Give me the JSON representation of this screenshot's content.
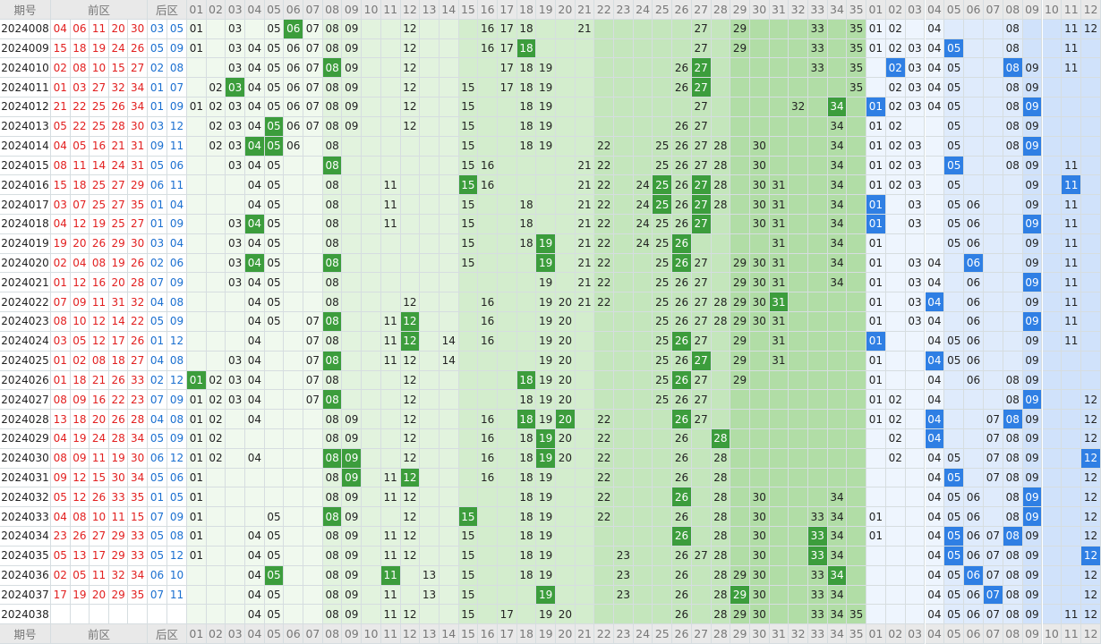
{
  "header": {
    "issue": "期号",
    "front": "前区",
    "back": "后区",
    "zone1": [
      "01",
      "02",
      "03",
      "04",
      "05",
      "06",
      "07",
      "08",
      "09",
      "10",
      "11",
      "12",
      "13",
      "14",
      "15",
      "16",
      "17",
      "18",
      "19",
      "20",
      "21",
      "22",
      "23",
      "24",
      "25",
      "26",
      "27",
      "28",
      "29",
      "30",
      "31",
      "32",
      "33",
      "34",
      "35"
    ],
    "zone2": [
      "01",
      "02",
      "03",
      "04",
      "05",
      "06",
      "07",
      "08",
      "09",
      "10",
      "11",
      "12"
    ]
  },
  "rows": [
    {
      "issue": "2024008",
      "front": [
        "04",
        "06",
        "11",
        "20",
        "30"
      ],
      "back": [
        "03",
        "05"
      ],
      "zone1": [
        "01",
        "03",
        "05",
        "06",
        "07",
        "08",
        "09",
        "12",
        "16",
        "17",
        "18",
        "21",
        "27",
        "29",
        "33",
        "35"
      ],
      "hl1": [
        "06"
      ],
      "zone2": [
        "01",
        "02",
        "04",
        "08",
        "11",
        "12"
      ],
      "hl2": []
    },
    {
      "issue": "2024009",
      "front": [
        "15",
        "18",
        "19",
        "24",
        "26"
      ],
      "back": [
        "05",
        "09"
      ],
      "zone1": [
        "01",
        "03",
        "04",
        "05",
        "06",
        "07",
        "08",
        "09",
        "12",
        "16",
        "17",
        "18",
        "27",
        "29",
        "33",
        "35"
      ],
      "hl1": [
        "18"
      ],
      "zone2": [
        "01",
        "02",
        "03",
        "04",
        "05",
        "08",
        "11"
      ],
      "hl2": [
        "05"
      ]
    },
    {
      "issue": "2024010",
      "front": [
        "02",
        "08",
        "10",
        "15",
        "27"
      ],
      "back": [
        "02",
        "08"
      ],
      "zone1": [
        "03",
        "04",
        "05",
        "06",
        "07",
        "08",
        "09",
        "12",
        "17",
        "18",
        "19",
        "26",
        "27",
        "33",
        "35"
      ],
      "hl1": [
        "08",
        "27"
      ],
      "zone2": [
        "02",
        "03",
        "04",
        "05",
        "08",
        "09",
        "11"
      ],
      "hl2": [
        "02",
        "08"
      ]
    },
    {
      "issue": "2024011",
      "front": [
        "01",
        "03",
        "27",
        "32",
        "34"
      ],
      "back": [
        "01",
        "07"
      ],
      "zone1": [
        "02",
        "03",
        "04",
        "05",
        "06",
        "07",
        "08",
        "09",
        "12",
        "15",
        "17",
        "18",
        "19",
        "26",
        "27",
        "35"
      ],
      "hl1": [
        "03",
        "27"
      ],
      "zone2": [
        "02",
        "03",
        "04",
        "05",
        "08",
        "09"
      ],
      "hl2": []
    },
    {
      "issue": "2024012",
      "front": [
        "21",
        "22",
        "25",
        "26",
        "34"
      ],
      "back": [
        "01",
        "09"
      ],
      "zone1": [
        "01",
        "02",
        "03",
        "04",
        "05",
        "06",
        "07",
        "08",
        "09",
        "12",
        "15",
        "18",
        "19",
        "27",
        "32",
        "34"
      ],
      "hl1": [
        "34"
      ],
      "zone2": [
        "01",
        "02",
        "03",
        "04",
        "05",
        "08",
        "09"
      ],
      "hl2": [
        "01",
        "09"
      ]
    },
    {
      "issue": "2024013",
      "front": [
        "05",
        "22",
        "25",
        "28",
        "30"
      ],
      "back": [
        "03",
        "12"
      ],
      "zone1": [
        "02",
        "03",
        "04",
        "05",
        "06",
        "07",
        "08",
        "09",
        "12",
        "15",
        "18",
        "19",
        "26",
        "27",
        "34"
      ],
      "hl1": [
        "05"
      ],
      "zone2": [
        "01",
        "02",
        "05",
        "08",
        "09"
      ],
      "hl2": []
    },
    {
      "issue": "2024014",
      "front": [
        "04",
        "05",
        "16",
        "21",
        "31"
      ],
      "back": [
        "09",
        "11"
      ],
      "zone1": [
        "02",
        "03",
        "04",
        "05",
        "06",
        "08",
        "15",
        "18",
        "19",
        "22",
        "25",
        "26",
        "27",
        "28",
        "30",
        "34"
      ],
      "hl1": [
        "04",
        "05"
      ],
      "zone2": [
        "01",
        "02",
        "03",
        "05",
        "08",
        "09"
      ],
      "hl2": [
        "09"
      ]
    },
    {
      "issue": "2024015",
      "front": [
        "08",
        "11",
        "14",
        "24",
        "31"
      ],
      "back": [
        "05",
        "06"
      ],
      "zone1": [
        "03",
        "04",
        "05",
        "08",
        "15",
        "16",
        "21",
        "22",
        "25",
        "26",
        "27",
        "28",
        "30",
        "34"
      ],
      "hl1": [
        "08"
      ],
      "zone2": [
        "01",
        "02",
        "03",
        "05",
        "08",
        "09",
        "11"
      ],
      "hl2": [
        "05"
      ]
    },
    {
      "issue": "2024016",
      "front": [
        "15",
        "18",
        "25",
        "27",
        "29"
      ],
      "back": [
        "06",
        "11"
      ],
      "zone1": [
        "04",
        "05",
        "08",
        "11",
        "15",
        "16",
        "21",
        "22",
        "24",
        "25",
        "26",
        "27",
        "28",
        "30",
        "31",
        "34"
      ],
      "hl1": [
        "15",
        "25",
        "27"
      ],
      "zone2": [
        "01",
        "02",
        "03",
        "05",
        "09",
        "11"
      ],
      "hl2": [
        "11"
      ]
    },
    {
      "issue": "2024017",
      "front": [
        "03",
        "07",
        "25",
        "27",
        "35"
      ],
      "back": [
        "01",
        "04"
      ],
      "zone1": [
        "04",
        "05",
        "08",
        "11",
        "15",
        "18",
        "21",
        "22",
        "24",
        "25",
        "26",
        "27",
        "28",
        "30",
        "31",
        "34"
      ],
      "hl1": [
        "25",
        "27"
      ],
      "zone2": [
        "01",
        "03",
        "05",
        "06",
        "09",
        "11"
      ],
      "hl2": [
        "01"
      ]
    },
    {
      "issue": "2024018",
      "front": [
        "04",
        "12",
        "19",
        "25",
        "27"
      ],
      "back": [
        "01",
        "09"
      ],
      "zone1": [
        "03",
        "04",
        "05",
        "08",
        "11",
        "15",
        "18",
        "21",
        "22",
        "24",
        "25",
        "26",
        "27",
        "30",
        "31",
        "34"
      ],
      "hl1": [
        "04",
        "27"
      ],
      "zone2": [
        "01",
        "03",
        "05",
        "06",
        "09",
        "11"
      ],
      "hl2": [
        "01",
        "09"
      ]
    },
    {
      "issue": "2024019",
      "front": [
        "19",
        "20",
        "26",
        "29",
        "30"
      ],
      "back": [
        "03",
        "04"
      ],
      "zone1": [
        "03",
        "04",
        "05",
        "08",
        "15",
        "18",
        "19",
        "21",
        "22",
        "24",
        "25",
        "26",
        "31",
        "34"
      ],
      "hl1": [
        "19",
        "26"
      ],
      "zone2": [
        "01",
        "05",
        "06",
        "09",
        "11"
      ],
      "hl2": []
    },
    {
      "issue": "2024020",
      "front": [
        "02",
        "04",
        "08",
        "19",
        "26"
      ],
      "back": [
        "02",
        "06"
      ],
      "zone1": [
        "03",
        "04",
        "05",
        "08",
        "15",
        "19",
        "21",
        "22",
        "25",
        "26",
        "27",
        "29",
        "30",
        "31",
        "34"
      ],
      "hl1": [
        "04",
        "08",
        "19",
        "26"
      ],
      "zone2": [
        "01",
        "03",
        "04",
        "06",
        "09",
        "11"
      ],
      "hl2": [
        "06"
      ]
    },
    {
      "issue": "2024021",
      "front": [
        "01",
        "12",
        "16",
        "20",
        "28"
      ],
      "back": [
        "07",
        "09"
      ],
      "zone1": [
        "03",
        "04",
        "05",
        "08",
        "19",
        "21",
        "22",
        "25",
        "26",
        "27",
        "29",
        "30",
        "31",
        "34"
      ],
      "hl1": [],
      "zone2": [
        "01",
        "03",
        "04",
        "06",
        "09",
        "11"
      ],
      "hl2": [
        "09"
      ]
    },
    {
      "issue": "2024022",
      "front": [
        "07",
        "09",
        "11",
        "31",
        "32"
      ],
      "back": [
        "04",
        "08"
      ],
      "zone1": [
        "04",
        "05",
        "08",
        "12",
        "16",
        "19",
        "20",
        "21",
        "22",
        "25",
        "26",
        "27",
        "28",
        "29",
        "30",
        "31"
      ],
      "hl1": [
        "31"
      ],
      "zone2": [
        "01",
        "03",
        "04",
        "06",
        "09",
        "11"
      ],
      "hl2": [
        "04"
      ]
    },
    {
      "issue": "2024023",
      "front": [
        "08",
        "10",
        "12",
        "14",
        "22"
      ],
      "back": [
        "05",
        "09"
      ],
      "zone1": [
        "04",
        "05",
        "07",
        "08",
        "11",
        "12",
        "16",
        "19",
        "20",
        "25",
        "26",
        "27",
        "28",
        "29",
        "30",
        "31"
      ],
      "hl1": [
        "08",
        "12"
      ],
      "zone2": [
        "01",
        "03",
        "04",
        "06",
        "09",
        "11"
      ],
      "hl2": [
        "09"
      ]
    },
    {
      "issue": "2024024",
      "front": [
        "03",
        "05",
        "12",
        "17",
        "26"
      ],
      "back": [
        "01",
        "12"
      ],
      "zone1": [
        "04",
        "07",
        "08",
        "11",
        "12",
        "14",
        "16",
        "19",
        "20",
        "25",
        "26",
        "27",
        "29",
        "31"
      ],
      "hl1": [
        "12",
        "26"
      ],
      "zone2": [
        "01",
        "04",
        "05",
        "06",
        "09",
        "11"
      ],
      "hl2": [
        "01"
      ]
    },
    {
      "issue": "2024025",
      "front": [
        "01",
        "02",
        "08",
        "18",
        "27"
      ],
      "back": [
        "04",
        "08"
      ],
      "zone1": [
        "03",
        "04",
        "07",
        "08",
        "11",
        "12",
        "14",
        "19",
        "20",
        "25",
        "26",
        "27",
        "29",
        "31"
      ],
      "hl1": [
        "08",
        "27"
      ],
      "zone2": [
        "01",
        "04",
        "05",
        "06",
        "09"
      ],
      "hl2": [
        "04"
      ]
    },
    {
      "issue": "2024026",
      "front": [
        "01",
        "18",
        "21",
        "26",
        "33"
      ],
      "back": [
        "02",
        "12"
      ],
      "zone1": [
        "01",
        "02",
        "03",
        "04",
        "07",
        "08",
        "12",
        "18",
        "19",
        "20",
        "25",
        "26",
        "27",
        "29"
      ],
      "hl1": [
        "01",
        "18",
        "26"
      ],
      "zone2": [
        "01",
        "04",
        "06",
        "08",
        "09"
      ],
      "hl2": []
    },
    {
      "issue": "2024027",
      "front": [
        "08",
        "09",
        "16",
        "22",
        "23"
      ],
      "back": [
        "07",
        "09"
      ],
      "zone1": [
        "01",
        "02",
        "03",
        "04",
        "07",
        "08",
        "12",
        "18",
        "19",
        "20",
        "25",
        "26",
        "27"
      ],
      "hl1": [
        "08"
      ],
      "zone2": [
        "01",
        "02",
        "04",
        "08",
        "09",
        "12"
      ],
      "hl2": [
        "09"
      ]
    },
    {
      "issue": "2024028",
      "front": [
        "13",
        "18",
        "20",
        "26",
        "28"
      ],
      "back": [
        "04",
        "08"
      ],
      "zone1": [
        "01",
        "02",
        "04",
        "08",
        "09",
        "12",
        "16",
        "18",
        "19",
        "20",
        "22",
        "26",
        "27"
      ],
      "hl1": [
        "18",
        "20",
        "26"
      ],
      "zone2": [
        "01",
        "02",
        "04",
        "07",
        "08",
        "09",
        "12"
      ],
      "hl2": [
        "04",
        "08"
      ]
    },
    {
      "issue": "2024029",
      "front": [
        "04",
        "19",
        "24",
        "28",
        "34"
      ],
      "back": [
        "05",
        "09"
      ],
      "zone1": [
        "01",
        "02",
        "08",
        "09",
        "12",
        "16",
        "18",
        "19",
        "20",
        "22",
        "26",
        "28"
      ],
      "hl1": [
        "19",
        "28"
      ],
      "zone2": [
        "02",
        "04",
        "07",
        "08",
        "09",
        "12"
      ],
      "hl2": [
        "04"
      ]
    },
    {
      "issue": "2024030",
      "front": [
        "08",
        "09",
        "11",
        "19",
        "30"
      ],
      "back": [
        "06",
        "12"
      ],
      "zone1": [
        "01",
        "02",
        "04",
        "08",
        "09",
        "12",
        "16",
        "18",
        "19",
        "20",
        "22",
        "26",
        "28"
      ],
      "hl1": [
        "08",
        "09",
        "19"
      ],
      "zone2": [
        "02",
        "04",
        "05",
        "07",
        "08",
        "09",
        "12"
      ],
      "hl2": [
        "12"
      ]
    },
    {
      "issue": "2024031",
      "front": [
        "09",
        "12",
        "15",
        "30",
        "34"
      ],
      "back": [
        "05",
        "06"
      ],
      "zone1": [
        "01",
        "08",
        "09",
        "11",
        "12",
        "16",
        "18",
        "19",
        "22",
        "26",
        "28"
      ],
      "hl1": [
        "09",
        "12"
      ],
      "zone2": [
        "04",
        "05",
        "07",
        "08",
        "09",
        "12"
      ],
      "hl2": [
        "05"
      ]
    },
    {
      "issue": "2024032",
      "front": [
        "05",
        "12",
        "26",
        "33",
        "35"
      ],
      "back": [
        "01",
        "05"
      ],
      "zone1": [
        "01",
        "08",
        "09",
        "11",
        "12",
        "18",
        "19",
        "22",
        "26",
        "28",
        "30",
        "34"
      ],
      "hl1": [
        "26"
      ],
      "zone2": [
        "04",
        "05",
        "06",
        "08",
        "09",
        "12"
      ],
      "hl2": [
        "09"
      ]
    },
    {
      "issue": "2024033",
      "front": [
        "04",
        "08",
        "10",
        "11",
        "15"
      ],
      "back": [
        "07",
        "09"
      ],
      "zone1": [
        "01",
        "05",
        "08",
        "09",
        "12",
        "15",
        "18",
        "19",
        "22",
        "26",
        "28",
        "30",
        "33",
        "34"
      ],
      "hl1": [
        "08",
        "15"
      ],
      "zone2": [
        "01",
        "04",
        "05",
        "06",
        "08",
        "09",
        "12"
      ],
      "hl2": [
        "09"
      ]
    },
    {
      "issue": "2024034",
      "front": [
        "23",
        "26",
        "27",
        "29",
        "33"
      ],
      "back": [
        "05",
        "08"
      ],
      "zone1": [
        "01",
        "04",
        "05",
        "08",
        "09",
        "11",
        "12",
        "15",
        "18",
        "19",
        "26",
        "28",
        "30",
        "33",
        "34"
      ],
      "hl1": [
        "26",
        "33"
      ],
      "zone2": [
        "01",
        "04",
        "05",
        "06",
        "07",
        "08",
        "09",
        "12"
      ],
      "hl2": [
        "05",
        "08"
      ]
    },
    {
      "issue": "2024035",
      "front": [
        "05",
        "13",
        "17",
        "29",
        "33"
      ],
      "back": [
        "05",
        "12"
      ],
      "zone1": [
        "01",
        "04",
        "05",
        "08",
        "09",
        "11",
        "12",
        "15",
        "18",
        "19",
        "23",
        "26",
        "27",
        "28",
        "30",
        "33",
        "34"
      ],
      "hl1": [
        "33"
      ],
      "zone2": [
        "04",
        "05",
        "06",
        "07",
        "08",
        "09",
        "12"
      ],
      "hl2": [
        "05",
        "12"
      ]
    },
    {
      "issue": "2024036",
      "front": [
        "02",
        "05",
        "11",
        "32",
        "34"
      ],
      "back": [
        "06",
        "10"
      ],
      "zone1": [
        "04",
        "05",
        "08",
        "09",
        "11",
        "13",
        "15",
        "18",
        "19",
        "23",
        "26",
        "28",
        "29",
        "30",
        "33",
        "34"
      ],
      "hl1": [
        "05",
        "11",
        "34"
      ],
      "zone2": [
        "04",
        "05",
        "06",
        "07",
        "08",
        "09",
        "12"
      ],
      "hl2": [
        "06"
      ]
    },
    {
      "issue": "2024037",
      "front": [
        "17",
        "19",
        "20",
        "29",
        "35"
      ],
      "back": [
        "07",
        "11"
      ],
      "zone1": [
        "04",
        "05",
        "08",
        "09",
        "11",
        "13",
        "15",
        "19",
        "23",
        "26",
        "28",
        "29",
        "30",
        "33",
        "34"
      ],
      "hl1": [
        "19",
        "29"
      ],
      "zone2": [
        "04",
        "05",
        "06",
        "07",
        "08",
        "09",
        "12"
      ],
      "hl2": [
        "07"
      ]
    },
    {
      "issue": "2024038",
      "front": [],
      "back": [],
      "zone1": [
        "04",
        "05",
        "08",
        "09",
        "11",
        "12",
        "15",
        "17",
        "19",
        "20",
        "26",
        "28",
        "29",
        "30",
        "33",
        "34",
        "35"
      ],
      "hl1": [],
      "zone2": [
        "04",
        "05",
        "06",
        "07",
        "08",
        "09",
        "11",
        "12"
      ],
      "hl2": []
    }
  ]
}
